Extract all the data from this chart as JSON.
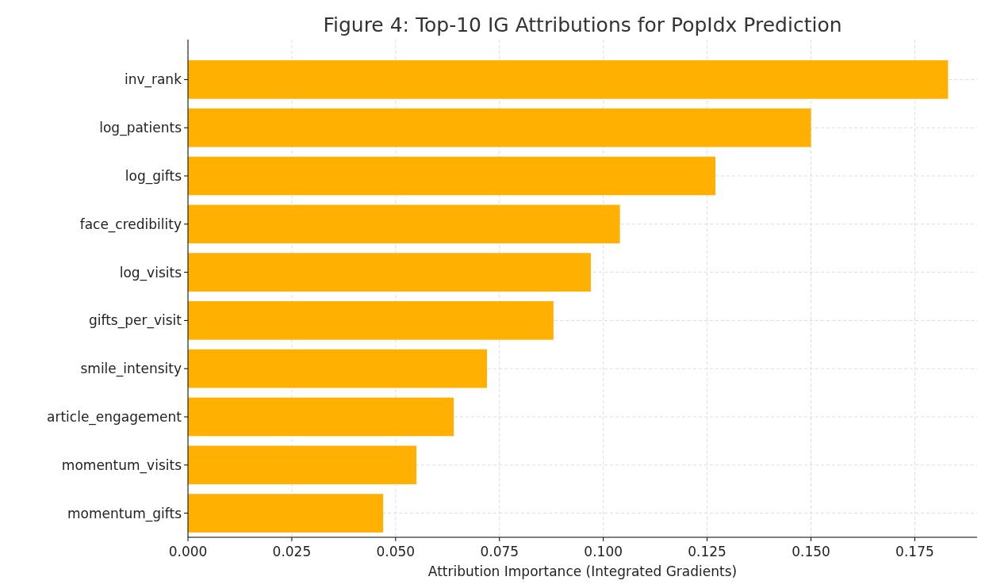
{
  "chart_data": {
    "type": "bar",
    "orientation": "horizontal",
    "title": "Figure 4: Top-10 IG Attributions for PopIdx Prediction",
    "xlabel": "Attribution Importance (Integrated Gradients)",
    "categories": [
      "inv_rank",
      "log_patients",
      "log_gifts",
      "face_credibility",
      "log_visits",
      "gifts_per_visit",
      "smile_intensity",
      "article_engagement",
      "momentum_visits",
      "momentum_gifts"
    ],
    "values": [
      0.183,
      0.15,
      0.127,
      0.104,
      0.097,
      0.088,
      0.072,
      0.064,
      0.055,
      0.047
    ],
    "color": "#ffb000",
    "xlim": [
      0,
      0.19
    ],
    "xticks": [
      {
        "value": 0,
        "label": "0.000"
      },
      {
        "value": 0.025,
        "label": "0.025"
      },
      {
        "value": 0.05,
        "label": "0.050"
      },
      {
        "value": 0.075,
        "label": "0.075"
      },
      {
        "value": 0.1,
        "label": "0.100"
      },
      {
        "value": 0.125,
        "label": "0.125"
      },
      {
        "value": 0.15,
        "label": "0.150"
      },
      {
        "value": 0.175,
        "label": "0.175"
      }
    ],
    "grid": true
  }
}
